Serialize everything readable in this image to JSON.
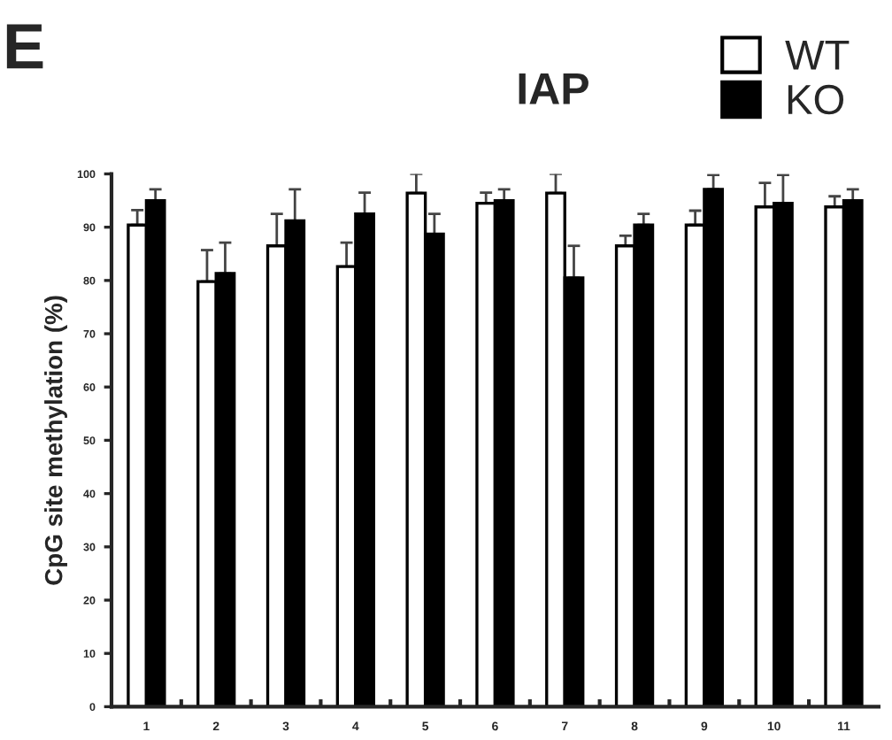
{
  "chart_data": {
    "type": "bar",
    "title": "IAP",
    "ylabel": "CpG site methylation (%)",
    "annotations": [
      "E"
    ],
    "categories": [
      "1",
      "2",
      "3",
      "4",
      "5",
      "6",
      "7",
      "8",
      "9",
      "10",
      "11"
    ],
    "series": [
      {
        "name": "WT",
        "color": "#ffffff",
        "values": [
          90.4,
          79.8,
          86.5,
          82.6,
          96.4,
          94.5,
          96.4,
          86.5,
          90.4,
          93.8,
          93.8
        ],
        "errors": [
          [
            90.4,
            93.2
          ],
          [
            79.8,
            85.7
          ],
          [
            86.5,
            92.5
          ],
          [
            82.6,
            87.1
          ],
          [
            96.4,
            100
          ],
          [
            94.5,
            96.5
          ],
          [
            96.4,
            100
          ],
          [
            86.5,
            88.4
          ],
          [
            90.4,
            93.1
          ],
          [
            93.8,
            98.3
          ],
          [
            93.8,
            95.8
          ]
        ]
      },
      {
        "name": "KO",
        "color": "#000000",
        "values": [
          95.0,
          81.3,
          91.2,
          92.5,
          88.7,
          95.0,
          80.5,
          90.4,
          97.1,
          94.5,
          95.0
        ],
        "errors": [
          [
            95.0,
            97.1
          ],
          [
            81.3,
            87.1
          ],
          [
            91.2,
            97.1
          ],
          [
            92.5,
            96.5
          ],
          [
            88.7,
            92.5
          ],
          [
            95.0,
            97.1
          ],
          [
            80.5,
            86.5
          ],
          [
            90.4,
            92.5
          ],
          [
            97.1,
            99.8
          ],
          [
            94.5,
            99.8
          ],
          [
            95.0,
            97.1
          ]
        ]
      }
    ],
    "ylim": [
      0,
      100
    ],
    "yticks": [
      0,
      10,
      20,
      30,
      40,
      50,
      60,
      70,
      80,
      90,
      100
    ],
    "grid": false,
    "legend": "top right"
  }
}
